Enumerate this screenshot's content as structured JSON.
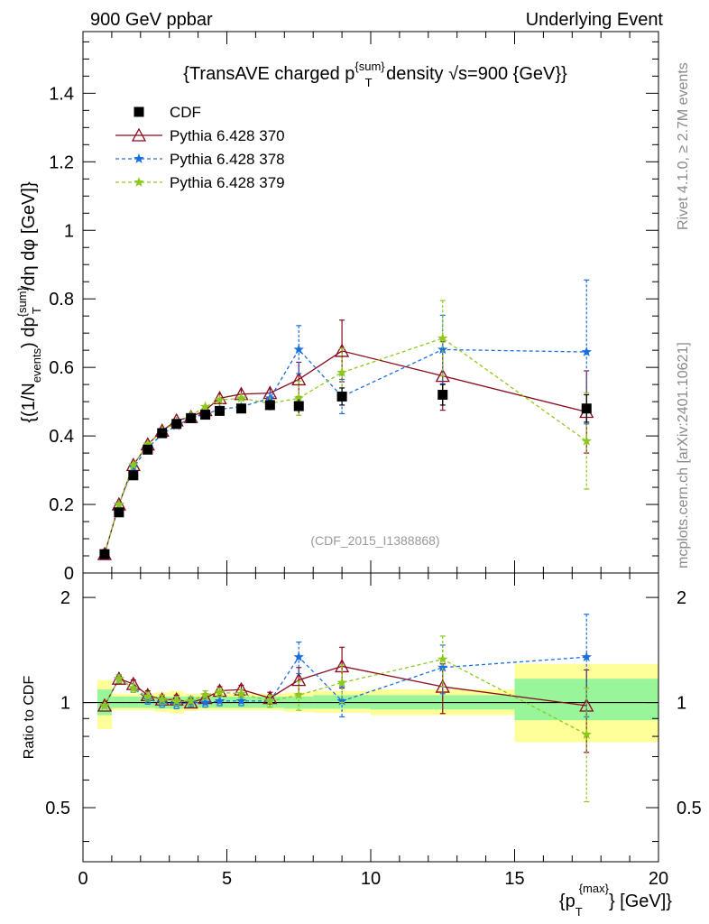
{
  "header": {
    "left": "900 GeV ppbar",
    "right": "Underlying Event"
  },
  "side_labels": {
    "rivet": "Rivet 4.1.0, ≥ 2.7M events",
    "mcplots": "mcplots.cern.ch [arXiv:2401.10621]"
  },
  "chart_data": [
    {
      "type": "line",
      "panel": "main",
      "title": "{TransAVE charged p^{sum}_T density √s=900 {GeV}}",
      "title_parts": {
        "pre": "{TransAVE charged p",
        "sup": "{sum}",
        "sub": "T",
        "post": " density √s=900 {GeV}}"
      },
      "watermark": "(CDF_2015_I1388868)",
      "xlabel": "{p_T^{max}} [GeV]}",
      "ylabel": "{(1/N_events) dp^{sum}_T /dη dφ [GeV]}",
      "xlim": [
        0,
        20
      ],
      "ylim": [
        0,
        1.58
      ],
      "x_ticks": [
        "0",
        "5",
        "10",
        "15",
        "20"
      ],
      "y_ticks": [
        "0",
        "0.2",
        "0.4",
        "0.6",
        "0.8",
        "1",
        "1.2",
        "1.4"
      ],
      "y_tick_values": [
        0,
        0.2,
        0.4,
        0.6,
        0.8,
        1.0,
        1.2,
        1.4
      ],
      "legend_position": "top-left",
      "series": [
        {
          "name": "CDF",
          "style": "data",
          "color": "#000000",
          "x": [
            0.75,
            1.25,
            1.75,
            2.25,
            2.75,
            3.25,
            3.75,
            4.25,
            4.75,
            5.5,
            6.5,
            7.5,
            9.0,
            12.5,
            17.5
          ],
          "y": [
            0.055,
            0.177,
            0.285,
            0.36,
            0.408,
            0.435,
            0.452,
            0.462,
            0.473,
            0.48,
            0.49,
            0.487,
            0.515,
            0.52,
            0.48
          ],
          "err": [
            0.005,
            0.005,
            0.008,
            0.008,
            0.008,
            0.008,
            0.01,
            0.01,
            0.01,
            0.01,
            0.015,
            0.02,
            0.025,
            0.03,
            0.04
          ]
        },
        {
          "name": "Pythia 6.428 370",
          "style": "solid-triangle",
          "color": "#8b0a1e",
          "x": [
            0.75,
            1.25,
            1.75,
            2.25,
            2.75,
            3.25,
            3.75,
            4.25,
            4.75,
            5.5,
            6.5,
            7.5,
            9.0,
            12.5,
            17.5
          ],
          "y": [
            0.055,
            0.2,
            0.315,
            0.375,
            0.415,
            0.445,
            0.455,
            0.475,
            0.51,
            0.522,
            0.525,
            0.565,
            0.648,
            0.575,
            0.47
          ],
          "err": [
            0.003,
            0.005,
            0.006,
            0.007,
            0.008,
            0.01,
            0.012,
            0.012,
            0.015,
            0.015,
            0.02,
            0.05,
            0.09,
            0.1,
            0.12
          ]
        },
        {
          "name": "Pythia 6.428 378",
          "style": "dashed-star",
          "color": "#1a6fe0",
          "x": [
            0.75,
            1.25,
            1.75,
            2.25,
            2.75,
            3.25,
            3.75,
            4.25,
            4.75,
            5.5,
            6.5,
            7.5,
            9.0,
            12.5,
            17.5
          ],
          "y": [
            0.055,
            0.2,
            0.308,
            0.365,
            0.405,
            0.43,
            0.452,
            0.463,
            0.478,
            0.485,
            0.51,
            0.652,
            0.515,
            0.652,
            0.645
          ],
          "err": [
            0.003,
            0.005,
            0.006,
            0.007,
            0.008,
            0.01,
            0.012,
            0.012,
            0.015,
            0.015,
            0.02,
            0.07,
            0.05,
            0.1,
            0.21
          ]
        },
        {
          "name": "Pythia 6.428 379",
          "style": "dashed-star",
          "color": "#8cc81e",
          "x": [
            0.75,
            1.25,
            1.75,
            2.25,
            2.75,
            3.25,
            3.75,
            4.25,
            4.75,
            5.5,
            6.5,
            7.5,
            9.0,
            12.5,
            17.5
          ],
          "y": [
            0.055,
            0.2,
            0.315,
            0.375,
            0.415,
            0.44,
            0.46,
            0.485,
            0.505,
            0.51,
            0.495,
            0.51,
            0.585,
            0.685,
            0.385
          ],
          "err": [
            0.003,
            0.005,
            0.006,
            0.007,
            0.008,
            0.01,
            0.012,
            0.012,
            0.015,
            0.015,
            0.02,
            0.05,
            0.07,
            0.11,
            0.14
          ]
        }
      ]
    },
    {
      "type": "line",
      "panel": "ratio",
      "ylabel": "Ratio to CDF",
      "xlim": [
        0,
        20
      ],
      "ylim": [
        0.35,
        2.35
      ],
      "yscale": "log",
      "y_ticks_left": [
        "2",
        "1",
        "0.5"
      ],
      "y_ticks_right": [
        "2",
        "1",
        "0.5"
      ],
      "y_tick_values": [
        2,
        1,
        0.5
      ],
      "reference_line": 1,
      "bands": {
        "edges": [
          0.5,
          1.0,
          1.5,
          2.0,
          2.5,
          3.0,
          3.5,
          4.0,
          4.5,
          5.0,
          6.0,
          7.0,
          8.0,
          10.0,
          15.0,
          20.0
        ],
        "stat_lo": [
          0.92,
          0.965,
          0.965,
          0.965,
          0.96,
          0.96,
          0.965,
          0.965,
          0.965,
          0.965,
          0.965,
          0.96,
          0.96,
          0.955,
          0.89
        ],
        "stat_hi": [
          1.09,
          1.04,
          1.04,
          1.04,
          1.04,
          1.04,
          1.04,
          1.04,
          1.04,
          1.04,
          1.04,
          1.04,
          1.05,
          1.05,
          1.17
        ],
        "total_lo": [
          0.84,
          0.95,
          0.95,
          0.95,
          0.94,
          0.93,
          0.945,
          0.95,
          0.95,
          0.95,
          0.95,
          0.94,
          0.935,
          0.92,
          0.77
        ],
        "total_hi": [
          1.16,
          1.06,
          1.06,
          1.06,
          1.07,
          1.08,
          1.06,
          1.06,
          1.06,
          1.06,
          1.06,
          1.07,
          1.08,
          1.09,
          1.29
        ]
      },
      "series": [
        {
          "name": "Pythia 6.428 370",
          "color": "#8b0a1e",
          "style": "solid-triangle",
          "x": [
            0.75,
            1.25,
            1.75,
            2.25,
            2.75,
            3.25,
            3.75,
            4.25,
            4.75,
            5.5,
            6.5,
            7.5,
            9.0,
            12.5,
            17.5
          ],
          "y": [
            0.98,
            1.17,
            1.13,
            1.05,
            1.02,
            1.02,
            1.0,
            1.03,
            1.08,
            1.09,
            1.03,
            1.16,
            1.27,
            1.11,
            0.98
          ],
          "err": [
            0.02,
            0.03,
            0.03,
            0.03,
            0.03,
            0.03,
            0.03,
            0.03,
            0.03,
            0.03,
            0.04,
            0.1,
            0.17,
            0.18,
            0.26
          ]
        },
        {
          "name": "Pythia 6.428 378",
          "color": "#1a6fe0",
          "style": "dashed-star",
          "x": [
            0.75,
            1.25,
            1.75,
            2.25,
            2.75,
            3.25,
            3.75,
            4.25,
            4.75,
            5.5,
            6.5,
            7.5,
            9.0,
            12.5,
            17.5
          ],
          "y": [
            0.98,
            1.17,
            1.1,
            1.02,
            1.0,
            0.99,
            1.0,
            1.0,
            1.01,
            1.01,
            1.01,
            1.35,
            1.01,
            1.26,
            1.35
          ],
          "err": [
            0.02,
            0.03,
            0.03,
            0.03,
            0.03,
            0.03,
            0.03,
            0.03,
            0.03,
            0.03,
            0.04,
            0.14,
            0.1,
            0.2,
            0.44
          ]
        },
        {
          "name": "Pythia 6.428 379",
          "color": "#8cc81e",
          "style": "dashed-star",
          "x": [
            0.75,
            1.25,
            1.75,
            2.25,
            2.75,
            3.25,
            3.75,
            4.25,
            4.75,
            5.5,
            6.5,
            7.5,
            9.0,
            12.5,
            17.5
          ],
          "y": [
            0.98,
            1.17,
            1.1,
            1.04,
            1.02,
            1.01,
            1.01,
            1.05,
            1.07,
            1.06,
            1.01,
            1.05,
            1.14,
            1.33,
            0.81
          ],
          "err": [
            0.02,
            0.03,
            0.03,
            0.03,
            0.03,
            0.03,
            0.03,
            0.03,
            0.03,
            0.03,
            0.04,
            0.1,
            0.14,
            0.22,
            0.29
          ]
        }
      ]
    }
  ]
}
